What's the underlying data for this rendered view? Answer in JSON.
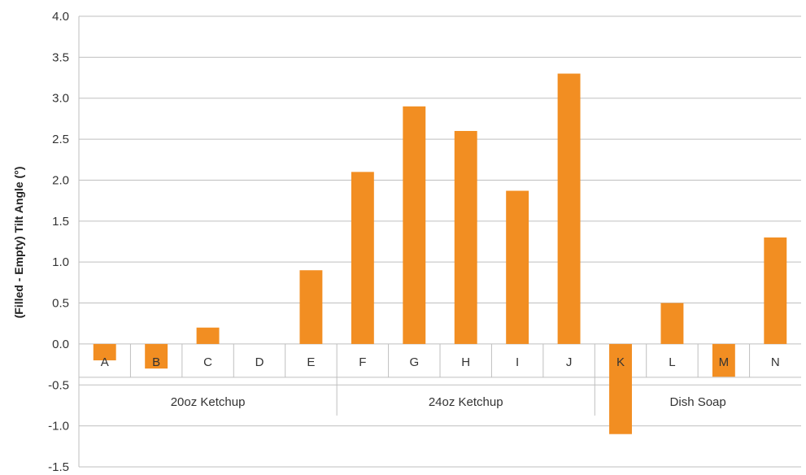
{
  "chart_data": {
    "type": "bar",
    "ylabel": "(Filled - Empty) Tilt Angle (°)",
    "xlabel": "",
    "ylim": [
      -1.5,
      4.0
    ],
    "ytick_step": 0.5,
    "yticks": [
      "-1.5",
      "-1.0",
      "-0.5",
      "0.0",
      "0.5",
      "1.0",
      "1.5",
      "2.0",
      "2.5",
      "3.0",
      "3.5",
      "4.0"
    ],
    "grid": true,
    "bar_color": "#f28e22",
    "categories": [
      "A",
      "B",
      "C",
      "D",
      "E",
      "F",
      "G",
      "H",
      "I",
      "J",
      "K",
      "L",
      "M",
      "N"
    ],
    "values": [
      -0.2,
      -0.3,
      0.2,
      0.0,
      0.9,
      2.1,
      2.9,
      2.6,
      1.87,
      3.3,
      -1.1,
      0.5,
      -0.4,
      1.3
    ],
    "groups": [
      {
        "label": "20oz Ketchup",
        "categories": [
          "A",
          "B",
          "C",
          "D",
          "E"
        ]
      },
      {
        "label": "24oz Ketchup",
        "categories": [
          "F",
          "G",
          "H",
          "I",
          "J"
        ]
      },
      {
        "label": "Dish Soap",
        "categories": [
          "K",
          "L",
          "M",
          "N"
        ]
      }
    ]
  }
}
